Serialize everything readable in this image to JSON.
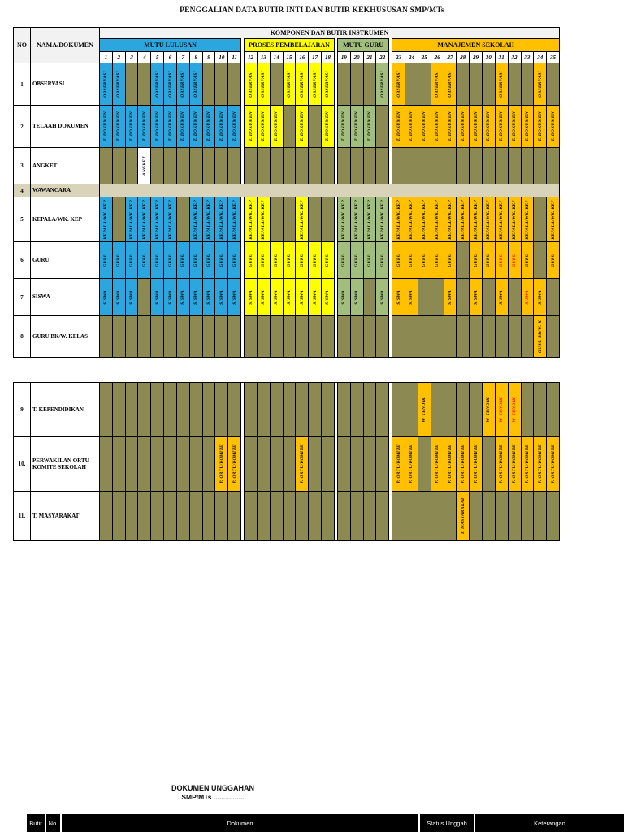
{
  "page_title": "PENGGALIAN DATA BUTIR INTI DAN BUTIR KEKHUSUSAN SMP/MTs",
  "colors": {
    "blue": "#2BA6DF",
    "yellow": "#FFFF00",
    "green": "#A2BE7C",
    "orange": "#FFC000",
    "olive": "#8C8A52",
    "beige": "#D9D3BA",
    "white": "#FFFFFF",
    "header_bg": "#F2F2F2",
    "red_text": "#FF0000"
  },
  "matrix": {
    "corner": {
      "no": "NO",
      "nama": "NAMA/DOKUMEN"
    },
    "komponen_header": "KOMPONEN DAN BUTIR INSTRUMEN",
    "sections": [
      {
        "label": "MUTU LULUSAN",
        "color": "blue",
        "col_start": 1,
        "col_end": 11
      },
      {
        "label": "PROSES PEMBELAJARAN",
        "color": "yellow",
        "col_start": 12,
        "col_end": 18
      },
      {
        "label": "MUTU GURU",
        "color": "green",
        "col_start": 19,
        "col_end": 22
      },
      {
        "label": "MANAJEMEN SEKOLAH",
        "color": "orange",
        "col_start": 23,
        "col_end": 35
      }
    ],
    "col_numbers": [
      "1",
      "2",
      "3",
      "4",
      "5",
      "6",
      "7",
      "8",
      "9",
      "10",
      "11",
      "12",
      "13",
      "14",
      "15",
      "16",
      "17",
      "18",
      "19",
      "20",
      "21",
      "22",
      "23",
      "24",
      "25",
      "26",
      "27",
      "28",
      "29",
      "30",
      "31",
      "32",
      "33",
      "34",
      "35"
    ],
    "rows": [
      {
        "no": "1",
        "label": "OBSERVASI",
        "cell_text": "OBSERVASI",
        "cells": {
          "blue": [
            1,
            2,
            5,
            6,
            7,
            8
          ],
          "yellow": [
            12,
            13,
            15,
            16,
            17,
            18
          ],
          "green": [
            22
          ],
          "orange": [
            23,
            26,
            27,
            31,
            34
          ]
        }
      },
      {
        "no": "2",
        "label": "TELAAH DOKUMEN",
        "cell_text": "T. DOKUMEN",
        "cells": {
          "blue": [
            1,
            2,
            3,
            4,
            5,
            6,
            7,
            8,
            9,
            10,
            11
          ],
          "yellow": [
            12,
            13,
            14,
            16,
            18
          ],
          "green": [
            19,
            20,
            21
          ],
          "orange": [
            23,
            24,
            25,
            26,
            27,
            28,
            29,
            30,
            31,
            32,
            33,
            34,
            35
          ]
        }
      },
      {
        "no": "3",
        "label": "ANGKET",
        "cell_text": "ANGKET",
        "cells": {
          "white": [
            4
          ]
        }
      },
      {
        "no": "4",
        "label": "WAWANCARA",
        "band": true
      },
      {
        "no": "5",
        "label": "KEPALA/WK. KEP",
        "cell_text": "KEPALA/WK. KEP",
        "cells": {
          "blue": [
            1,
            3,
            4,
            5,
            6,
            8,
            9,
            10,
            11
          ],
          "yellow": [
            12,
            13,
            16
          ],
          "green": [
            19,
            20,
            21,
            22
          ],
          "orange": [
            23,
            24,
            25,
            26,
            27,
            28,
            29,
            30,
            31,
            32,
            33,
            35
          ]
        }
      },
      {
        "no": "6",
        "label": "GURU",
        "cell_text": "GURU",
        "red_cols": [
          31,
          32
        ],
        "cells": {
          "blue": [
            1,
            2,
            3,
            4,
            5,
            6,
            7,
            8,
            9,
            10,
            11
          ],
          "yellow": [
            12,
            13,
            14,
            15,
            16,
            17,
            18
          ],
          "green": [
            19,
            20,
            21,
            22
          ],
          "orange": [
            23,
            24,
            25,
            26,
            27,
            29,
            30,
            31,
            32,
            33,
            35
          ]
        }
      },
      {
        "no": "7",
        "label": "SISWA",
        "cell_text": "SISWA",
        "red_cols": [
          33
        ],
        "cells": {
          "blue": [
            1,
            2,
            3,
            5,
            6,
            7,
            8,
            9,
            10,
            11
          ],
          "yellow": [
            12,
            13,
            14,
            15,
            16,
            17,
            18
          ],
          "green": [
            19,
            20,
            22
          ],
          "orange": [
            23,
            24,
            27,
            29,
            31,
            33,
            34
          ]
        }
      },
      {
        "no": "8",
        "label": "GURU BK/W. KELAS",
        "cell_text": "GURU BK/W. K",
        "cells": {
          "orange": [
            34
          ]
        }
      }
    ]
  },
  "table2": {
    "rows": [
      {
        "no": "9",
        "label": "T. KEPENDIDIKAN",
        "cell_text": "W. TENDIK",
        "red_cols": [
          31,
          32
        ],
        "cells": {
          "orange": [
            25,
            30,
            31,
            32
          ]
        }
      },
      {
        "no": "10.",
        "label": "PERWAKILAN ORTU KOMITE SEKOLAH",
        "cell_text": "P. ORTU/KOMITE",
        "cells": {
          "orange": [
            10,
            11,
            16,
            23,
            24,
            26,
            27,
            28,
            29,
            31,
            32,
            33,
            34,
            35
          ]
        }
      },
      {
        "no": "11.",
        "label": "T. MASYARAKAT",
        "cell_text": "T. MASYARAKAT",
        "cells": {
          "orange": [
            28
          ]
        }
      }
    ]
  },
  "footer": {
    "heading1": "DOKUMEN UNGGAHAN",
    "heading2": "SMP/MTs ................",
    "bar_columns": [
      {
        "label": "Butir"
      },
      {
        "label": "No."
      },
      {
        "label": "Dokumen"
      },
      {
        "label": "Status Unggah"
      },
      {
        "label": "Keterangan"
      }
    ]
  }
}
